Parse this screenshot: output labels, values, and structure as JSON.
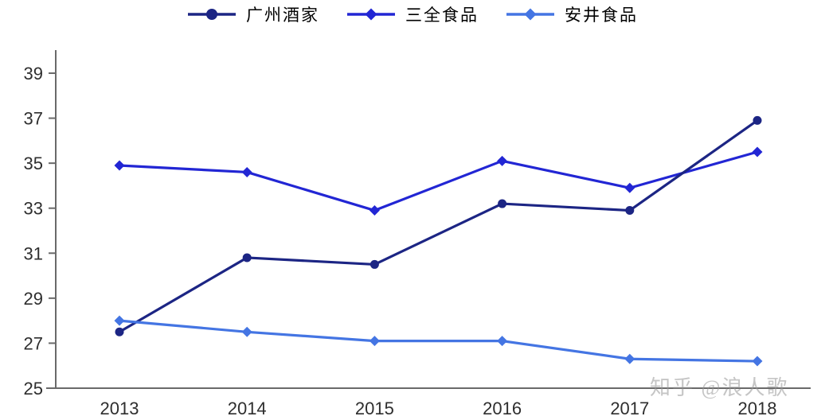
{
  "chart_data": {
    "type": "line",
    "title": "",
    "xlabel": "",
    "ylabel": "",
    "x": [
      "2013",
      "2014",
      "2015",
      "2016",
      "2017",
      "2018"
    ],
    "series": [
      {
        "name": "广州酒家",
        "color": "#1c2584",
        "marker": "circle",
        "values": [
          27.5,
          30.8,
          30.5,
          33.2,
          32.9,
          36.9
        ]
      },
      {
        "name": "三全食品",
        "color": "#2226d4",
        "marker": "diamond",
        "values": [
          34.9,
          34.6,
          32.9,
          35.1,
          33.9,
          35.5
        ]
      },
      {
        "name": "安井食品",
        "color": "#4475e3",
        "marker": "diamond",
        "values": [
          28.0,
          27.5,
          27.1,
          27.1,
          26.3,
          26.2
        ]
      }
    ],
    "ylim": [
      25,
      39
    ],
    "yticks": [
      25,
      27,
      29,
      31,
      33,
      35,
      37,
      39
    ],
    "legend_position": "top",
    "grid": false
  },
  "watermark": {
    "text": "知乎 @浪人歌"
  },
  "colors": {
    "axis": "#6a6a6a",
    "tick_label": "#2e2e2e",
    "background": "#ffffff"
  }
}
